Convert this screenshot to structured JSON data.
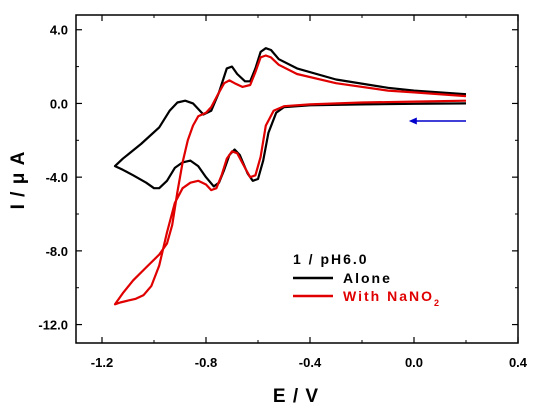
{
  "chart_data": {
    "type": "line",
    "xlabel": "E / V",
    "ylabel": "I / μ A",
    "xlim": [
      -1.3,
      0.4
    ],
    "ylim": [
      -13.0,
      4.8
    ],
    "x_ticks": [
      -1.2,
      -0.8,
      -0.4,
      0.0,
      0.4
    ],
    "x_tick_labels": [
      "-1.2",
      "-0.8",
      "-0.4",
      "0.0",
      "0.4"
    ],
    "y_ticks": [
      4.0,
      0.0,
      -4.0,
      -8.0,
      -12.0
    ],
    "y_tick_labels": [
      "4.0",
      "0.0",
      "-4.0",
      "-8.0",
      "-12.0"
    ],
    "legend": {
      "placement": "bottom-right",
      "title": "1 / pH6.0"
    },
    "scan_direction_arrow": {
      "from": [
        0.2,
        -0.95
      ],
      "to": [
        -0.02,
        -0.95
      ],
      "color": "#0000CC"
    },
    "series": [
      {
        "name": "Alone",
        "label_text": "Alone",
        "color": "#000000",
        "points": [
          [
            0.2,
            0.0
          ],
          [
            0.0,
            -0.02
          ],
          [
            -0.2,
            -0.05
          ],
          [
            -0.4,
            -0.1
          ],
          [
            -0.5,
            -0.2
          ],
          [
            -0.53,
            -0.5
          ],
          [
            -0.56,
            -1.6
          ],
          [
            -0.58,
            -3.1
          ],
          [
            -0.6,
            -4.1
          ],
          [
            -0.62,
            -4.2
          ],
          [
            -0.64,
            -3.8
          ],
          [
            -0.67,
            -2.8
          ],
          [
            -0.69,
            -2.5
          ],
          [
            -0.71,
            -2.8
          ],
          [
            -0.73,
            -3.6
          ],
          [
            -0.75,
            -4.3
          ],
          [
            -0.77,
            -4.5
          ],
          [
            -0.8,
            -4.0
          ],
          [
            -0.83,
            -3.4
          ],
          [
            -0.86,
            -3.1
          ],
          [
            -0.89,
            -3.2
          ],
          [
            -0.92,
            -3.5
          ],
          [
            -0.95,
            -4.2
          ],
          [
            -0.98,
            -4.6
          ],
          [
            -1.0,
            -4.6
          ],
          [
            -1.03,
            -4.3
          ],
          [
            -1.08,
            -3.9
          ],
          [
            -1.12,
            -3.6
          ],
          [
            -1.15,
            -3.4
          ],
          [
            -1.12,
            -3.0
          ],
          [
            -1.05,
            -2.2
          ],
          [
            -0.98,
            -1.3
          ],
          [
            -0.94,
            -0.4
          ],
          [
            -0.91,
            0.05
          ],
          [
            -0.88,
            0.15
          ],
          [
            -0.85,
            0.0
          ],
          [
            -0.81,
            -0.6
          ],
          [
            -0.78,
            -0.4
          ],
          [
            -0.75,
            0.6
          ],
          [
            -0.72,
            1.9
          ],
          [
            -0.7,
            2.0
          ],
          [
            -0.68,
            1.6
          ],
          [
            -0.65,
            1.2
          ],
          [
            -0.63,
            1.2
          ],
          [
            -0.61,
            1.9
          ],
          [
            -0.59,
            2.8
          ],
          [
            -0.57,
            3.0
          ],
          [
            -0.55,
            2.9
          ],
          [
            -0.52,
            2.4
          ],
          [
            -0.45,
            1.9
          ],
          [
            -0.3,
            1.3
          ],
          [
            -0.1,
            0.85
          ],
          [
            0.0,
            0.7
          ],
          [
            0.2,
            0.5
          ]
        ]
      },
      {
        "name": "With NaNO2",
        "label_text": "With NaNO",
        "label_subscript": "2",
        "color": "#E00000",
        "points": [
          [
            0.2,
            0.15
          ],
          [
            0.0,
            0.1
          ],
          [
            -0.2,
            0.05
          ],
          [
            -0.4,
            -0.05
          ],
          [
            -0.5,
            -0.15
          ],
          [
            -0.54,
            -0.4
          ],
          [
            -0.57,
            -1.2
          ],
          [
            -0.59,
            -2.9
          ],
          [
            -0.61,
            -3.9
          ],
          [
            -0.63,
            -4.0
          ],
          [
            -0.65,
            -3.5
          ],
          [
            -0.68,
            -2.7
          ],
          [
            -0.7,
            -2.6
          ],
          [
            -0.72,
            -3.0
          ],
          [
            -0.74,
            -3.9
          ],
          [
            -0.76,
            -4.6
          ],
          [
            -0.78,
            -4.7
          ],
          [
            -0.8,
            -4.4
          ],
          [
            -0.83,
            -4.2
          ],
          [
            -0.86,
            -4.3
          ],
          [
            -0.89,
            -4.6
          ],
          [
            -0.92,
            -5.4
          ],
          [
            -0.95,
            -7.0
          ],
          [
            -0.98,
            -8.8
          ],
          [
            -1.01,
            -9.9
          ],
          [
            -1.04,
            -10.4
          ],
          [
            -1.07,
            -10.6
          ],
          [
            -1.1,
            -10.7
          ],
          [
            -1.13,
            -10.8
          ],
          [
            -1.15,
            -10.9
          ],
          [
            -1.12,
            -10.3
          ],
          [
            -1.08,
            -9.6
          ],
          [
            -1.03,
            -8.9
          ],
          [
            -0.98,
            -8.2
          ],
          [
            -0.95,
            -7.6
          ],
          [
            -0.93,
            -6.6
          ],
          [
            -0.91,
            -4.8
          ],
          [
            -0.89,
            -3.2
          ],
          [
            -0.87,
            -2.0
          ],
          [
            -0.85,
            -1.2
          ],
          [
            -0.83,
            -0.7
          ],
          [
            -0.8,
            -0.5
          ],
          [
            -0.78,
            -0.2
          ],
          [
            -0.75,
            0.6
          ],
          [
            -0.73,
            1.1
          ],
          [
            -0.71,
            1.25
          ],
          [
            -0.69,
            1.1
          ],
          [
            -0.66,
            0.9
          ],
          [
            -0.63,
            1.0
          ],
          [
            -0.61,
            1.7
          ],
          [
            -0.59,
            2.5
          ],
          [
            -0.57,
            2.6
          ],
          [
            -0.55,
            2.5
          ],
          [
            -0.52,
            2.1
          ],
          [
            -0.45,
            1.6
          ],
          [
            -0.3,
            1.1
          ],
          [
            -0.1,
            0.7
          ],
          [
            0.0,
            0.6
          ],
          [
            0.2,
            0.4
          ]
        ]
      }
    ]
  }
}
